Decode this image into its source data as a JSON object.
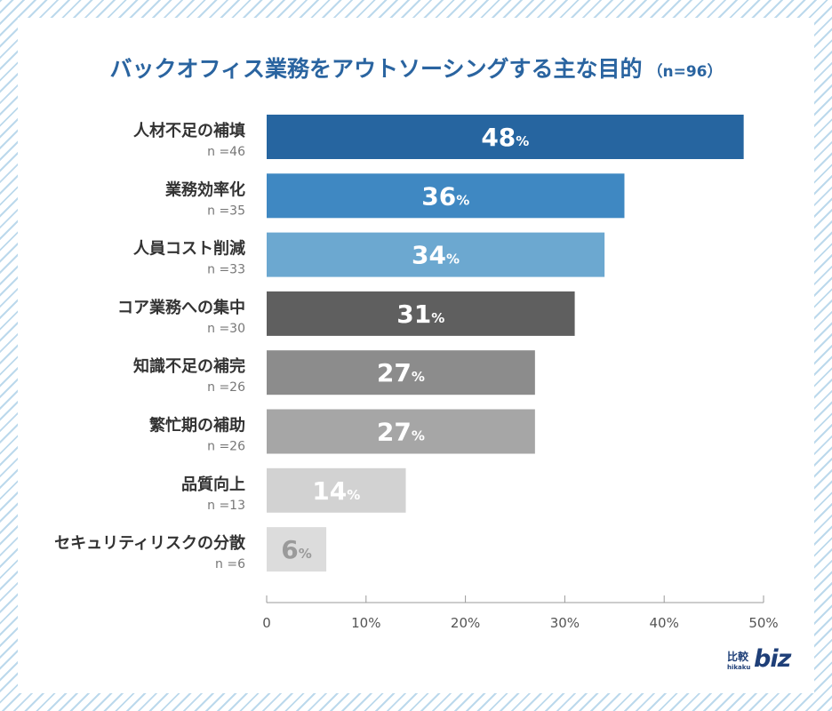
{
  "title": "バックオフィス業務をアウトソーシングする主な目的",
  "sample_size": "（n=96）",
  "brand": {
    "jp": "比較",
    "romaji": "hikaku",
    "name": "biz"
  },
  "chart_data": {
    "type": "bar",
    "orientation": "horizontal",
    "title": "バックオフィス業務をアウトソーシングする主な目的（n=96）",
    "categories": [
      "人材不足の補填",
      "業務効率化",
      "人員コスト削減",
      "コア業務への集中",
      "知識不足の補完",
      "繁忙期の補助",
      "品質向上",
      "セキュリティリスクの分散"
    ],
    "counts": [
      "n =46",
      "n =35",
      "n =33",
      "n =30",
      "n =26",
      "n =26",
      "n =13",
      "n =6"
    ],
    "values": [
      48,
      36,
      34,
      31,
      27,
      27,
      14,
      6
    ],
    "value_suffix": "%",
    "colors": [
      "#2665a0",
      "#3f88c2",
      "#6ca8d0",
      "#5f5f5f",
      "#8c8c8c",
      "#a6a6a6",
      "#d2d2d2",
      "#dcdcdc"
    ],
    "label_colors": [
      "#ffffff",
      "#ffffff",
      "#ffffff",
      "#ffffff",
      "#ffffff",
      "#ffffff",
      "#ffffff",
      "#9a9a9a"
    ],
    "xlim": [
      0,
      50
    ],
    "xticks": [
      "0",
      "10%",
      "20%",
      "30%",
      "40%",
      "50%"
    ],
    "xlabel": "",
    "ylabel": "",
    "grid": false
  }
}
